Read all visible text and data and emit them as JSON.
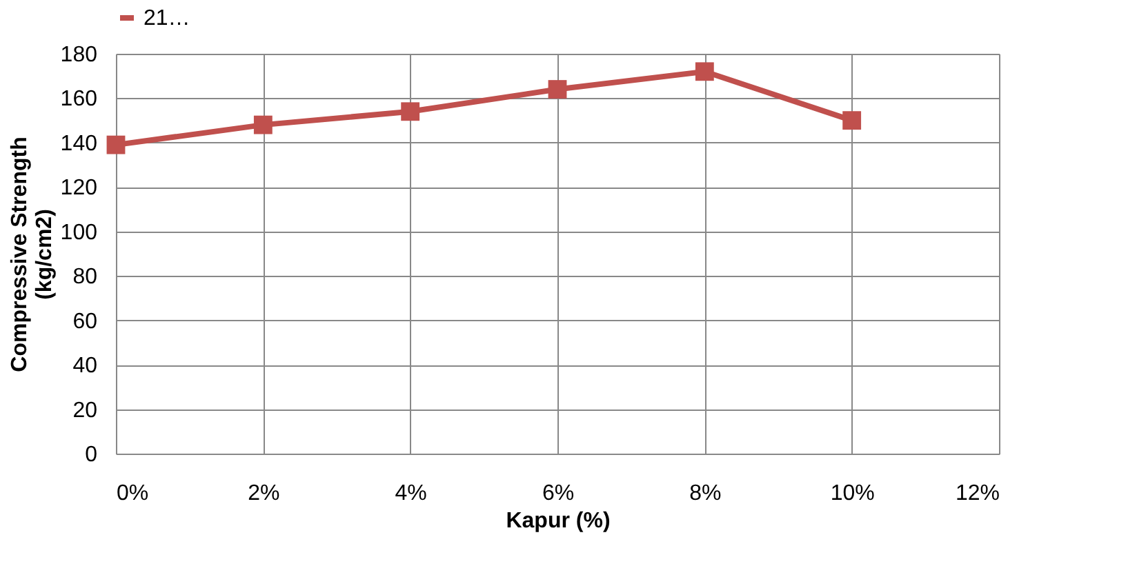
{
  "chart_data": {
    "type": "line",
    "xlabel": "Kapur (%)",
    "ylabel": "Compressive Strength\n(kg/cm2)",
    "x": [
      0,
      2,
      4,
      6,
      8,
      10
    ],
    "series": [
      {
        "name": "21…",
        "color": "#c0504d",
        "values": [
          139,
          148,
          154,
          164,
          172,
          150
        ]
      }
    ],
    "xlim": [
      0,
      12
    ],
    "xticks": [
      {
        "value": 0,
        "label": "0%"
      },
      {
        "value": 2,
        "label": "2%"
      },
      {
        "value": 4,
        "label": "4%"
      },
      {
        "value": 6,
        "label": "6%"
      },
      {
        "value": 8,
        "label": "8%"
      },
      {
        "value": 10,
        "label": "10%"
      },
      {
        "value": 12,
        "label": "12%"
      }
    ],
    "ylim": [
      0,
      180
    ],
    "yticks": [
      0,
      20,
      40,
      60,
      80,
      100,
      120,
      140,
      160,
      180
    ],
    "grid": true,
    "legend": "top",
    "marker": "square",
    "line_style": "solid"
  }
}
